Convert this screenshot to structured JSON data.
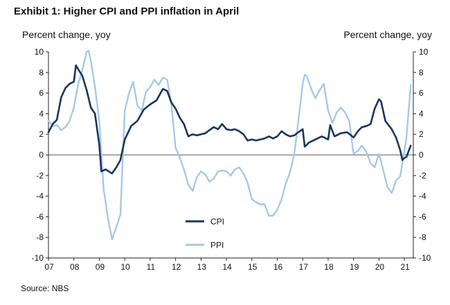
{
  "figure": {
    "title": "Exhibit 1: Higher CPI and PPI inflation in April",
    "unit_left": "Percent change, yoy",
    "unit_right": "Percent change, yoy",
    "source": "Source: NBS"
  },
  "chart_data": {
    "type": "line",
    "title": "Exhibit 1: Higher CPI and PPI inflation in April",
    "xlabel": "",
    "ylabel": "Percent change, yoy",
    "ylim": [
      -10,
      10
    ],
    "yticks": [
      -10,
      -8,
      -6,
      -4,
      -2,
      0,
      2,
      4,
      6,
      8,
      10
    ],
    "xlim": [
      2007.0,
      2021.35
    ],
    "xtick_labels": [
      "07",
      "08",
      "09",
      "10",
      "11",
      "12",
      "13",
      "14",
      "15",
      "16",
      "17",
      "18",
      "19",
      "20",
      "21"
    ],
    "legend": "lower-center",
    "series": [
      {
        "name": "CPI",
        "color": "#17365d",
        "x": [
          2007.0,
          2007.17,
          2007.33,
          2007.5,
          2007.67,
          2007.83,
          2008.0,
          2008.08,
          2008.17,
          2008.33,
          2008.5,
          2008.67,
          2008.83,
          2009.0,
          2009.08,
          2009.25,
          2009.5,
          2009.67,
          2009.83,
          2010.0,
          2010.25,
          2010.5,
          2010.75,
          2011.0,
          2011.25,
          2011.5,
          2011.67,
          2011.83,
          2012.0,
          2012.17,
          2012.33,
          2012.5,
          2012.67,
          2012.83,
          2013.0,
          2013.17,
          2013.33,
          2013.5,
          2013.67,
          2013.83,
          2014.0,
          2014.17,
          2014.33,
          2014.5,
          2014.67,
          2014.83,
          2015.0,
          2015.17,
          2015.33,
          2015.5,
          2015.67,
          2015.83,
          2016.0,
          2016.17,
          2016.33,
          2016.5,
          2016.67,
          2016.83,
          2017.0,
          2017.08,
          2017.25,
          2017.5,
          2017.75,
          2018.0,
          2018.08,
          2018.25,
          2018.5,
          2018.75,
          2019.0,
          2019.17,
          2019.33,
          2019.5,
          2019.67,
          2019.83,
          2020.0,
          2020.08,
          2020.25,
          2020.5,
          2020.67,
          2020.83,
          2020.92,
          2021.0,
          2021.08,
          2021.17,
          2021.25
        ],
        "values": [
          2.2,
          3.0,
          3.4,
          5.6,
          6.5,
          6.9,
          7.1,
          8.7,
          8.3,
          7.7,
          6.3,
          4.6,
          4.0,
          1.0,
          -1.6,
          -1.4,
          -1.8,
          -1.2,
          -0.5,
          1.5,
          2.8,
          3.3,
          4.4,
          4.9,
          5.3,
          6.4,
          6.2,
          5.1,
          4.5,
          3.6,
          3.0,
          1.8,
          2.0,
          1.9,
          2.0,
          2.1,
          2.4,
          2.7,
          2.5,
          3.0,
          2.5,
          2.4,
          2.5,
          2.3,
          2.0,
          1.4,
          1.5,
          1.4,
          1.5,
          1.6,
          1.8,
          1.6,
          1.8,
          2.3,
          2.0,
          1.8,
          1.9,
          2.2,
          2.5,
          0.8,
          1.2,
          1.5,
          1.8,
          1.5,
          2.9,
          1.8,
          2.1,
          2.2,
          1.7,
          2.3,
          2.7,
          2.8,
          3.0,
          4.5,
          5.4,
          5.2,
          3.3,
          2.5,
          1.7,
          0.5,
          -0.5,
          -0.3,
          -0.2,
          0.4,
          0.9
        ]
      },
      {
        "name": "PPI",
        "color": "#a6c8e7",
        "x": [
          2007.0,
          2007.17,
          2007.33,
          2007.5,
          2007.67,
          2007.83,
          2008.0,
          2008.17,
          2008.33,
          2008.5,
          2008.58,
          2008.67,
          2008.83,
          2009.0,
          2009.17,
          2009.33,
          2009.5,
          2009.67,
          2009.83,
          2010.0,
          2010.17,
          2010.33,
          2010.5,
          2010.67,
          2010.83,
          2011.0,
          2011.17,
          2011.33,
          2011.5,
          2011.67,
          2011.83,
          2012.0,
          2012.17,
          2012.33,
          2012.5,
          2012.67,
          2012.83,
          2013.0,
          2013.17,
          2013.33,
          2013.5,
          2013.67,
          2013.83,
          2014.0,
          2014.17,
          2014.33,
          2014.5,
          2014.67,
          2014.83,
          2015.0,
          2015.17,
          2015.33,
          2015.5,
          2015.67,
          2015.83,
          2016.0,
          2016.17,
          2016.33,
          2016.5,
          2016.67,
          2016.83,
          2017.0,
          2017.08,
          2017.17,
          2017.33,
          2017.5,
          2017.67,
          2017.83,
          2018.0,
          2018.17,
          2018.33,
          2018.5,
          2018.67,
          2018.83,
          2019.0,
          2019.17,
          2019.33,
          2019.5,
          2019.67,
          2019.83,
          2020.0,
          2020.17,
          2020.33,
          2020.5,
          2020.67,
          2020.83,
          2021.0,
          2021.08,
          2021.17,
          2021.25
        ],
        "values": [
          3.3,
          2.8,
          2.9,
          2.4,
          2.7,
          3.3,
          4.6,
          6.9,
          8.2,
          10.0,
          10.1,
          9.1,
          6.6,
          3.3,
          -3.3,
          -6.0,
          -8.2,
          -7.0,
          -5.8,
          4.3,
          6.0,
          7.1,
          4.8,
          4.3,
          6.1,
          6.6,
          7.3,
          6.8,
          7.5,
          7.3,
          5.0,
          0.7,
          -0.3,
          -1.4,
          -2.9,
          -3.5,
          -2.2,
          -1.6,
          -1.9,
          -2.6,
          -2.3,
          -1.6,
          -1.5,
          -1.6,
          -2.0,
          -1.4,
          -1.2,
          -1.8,
          -2.7,
          -4.3,
          -4.6,
          -4.8,
          -4.8,
          -5.9,
          -5.9,
          -5.3,
          -4.3,
          -2.8,
          -1.7,
          0.1,
          3.3,
          6.9,
          7.8,
          7.6,
          6.4,
          5.5,
          6.3,
          6.9,
          4.3,
          3.1,
          4.1,
          4.6,
          4.1,
          3.3,
          0.1,
          0.4,
          0.9,
          0.3,
          -0.8,
          -1.2,
          0.1,
          -1.5,
          -3.1,
          -3.7,
          -2.5,
          -2.1,
          0.3,
          1.7,
          4.4,
          6.8
        ]
      }
    ]
  }
}
